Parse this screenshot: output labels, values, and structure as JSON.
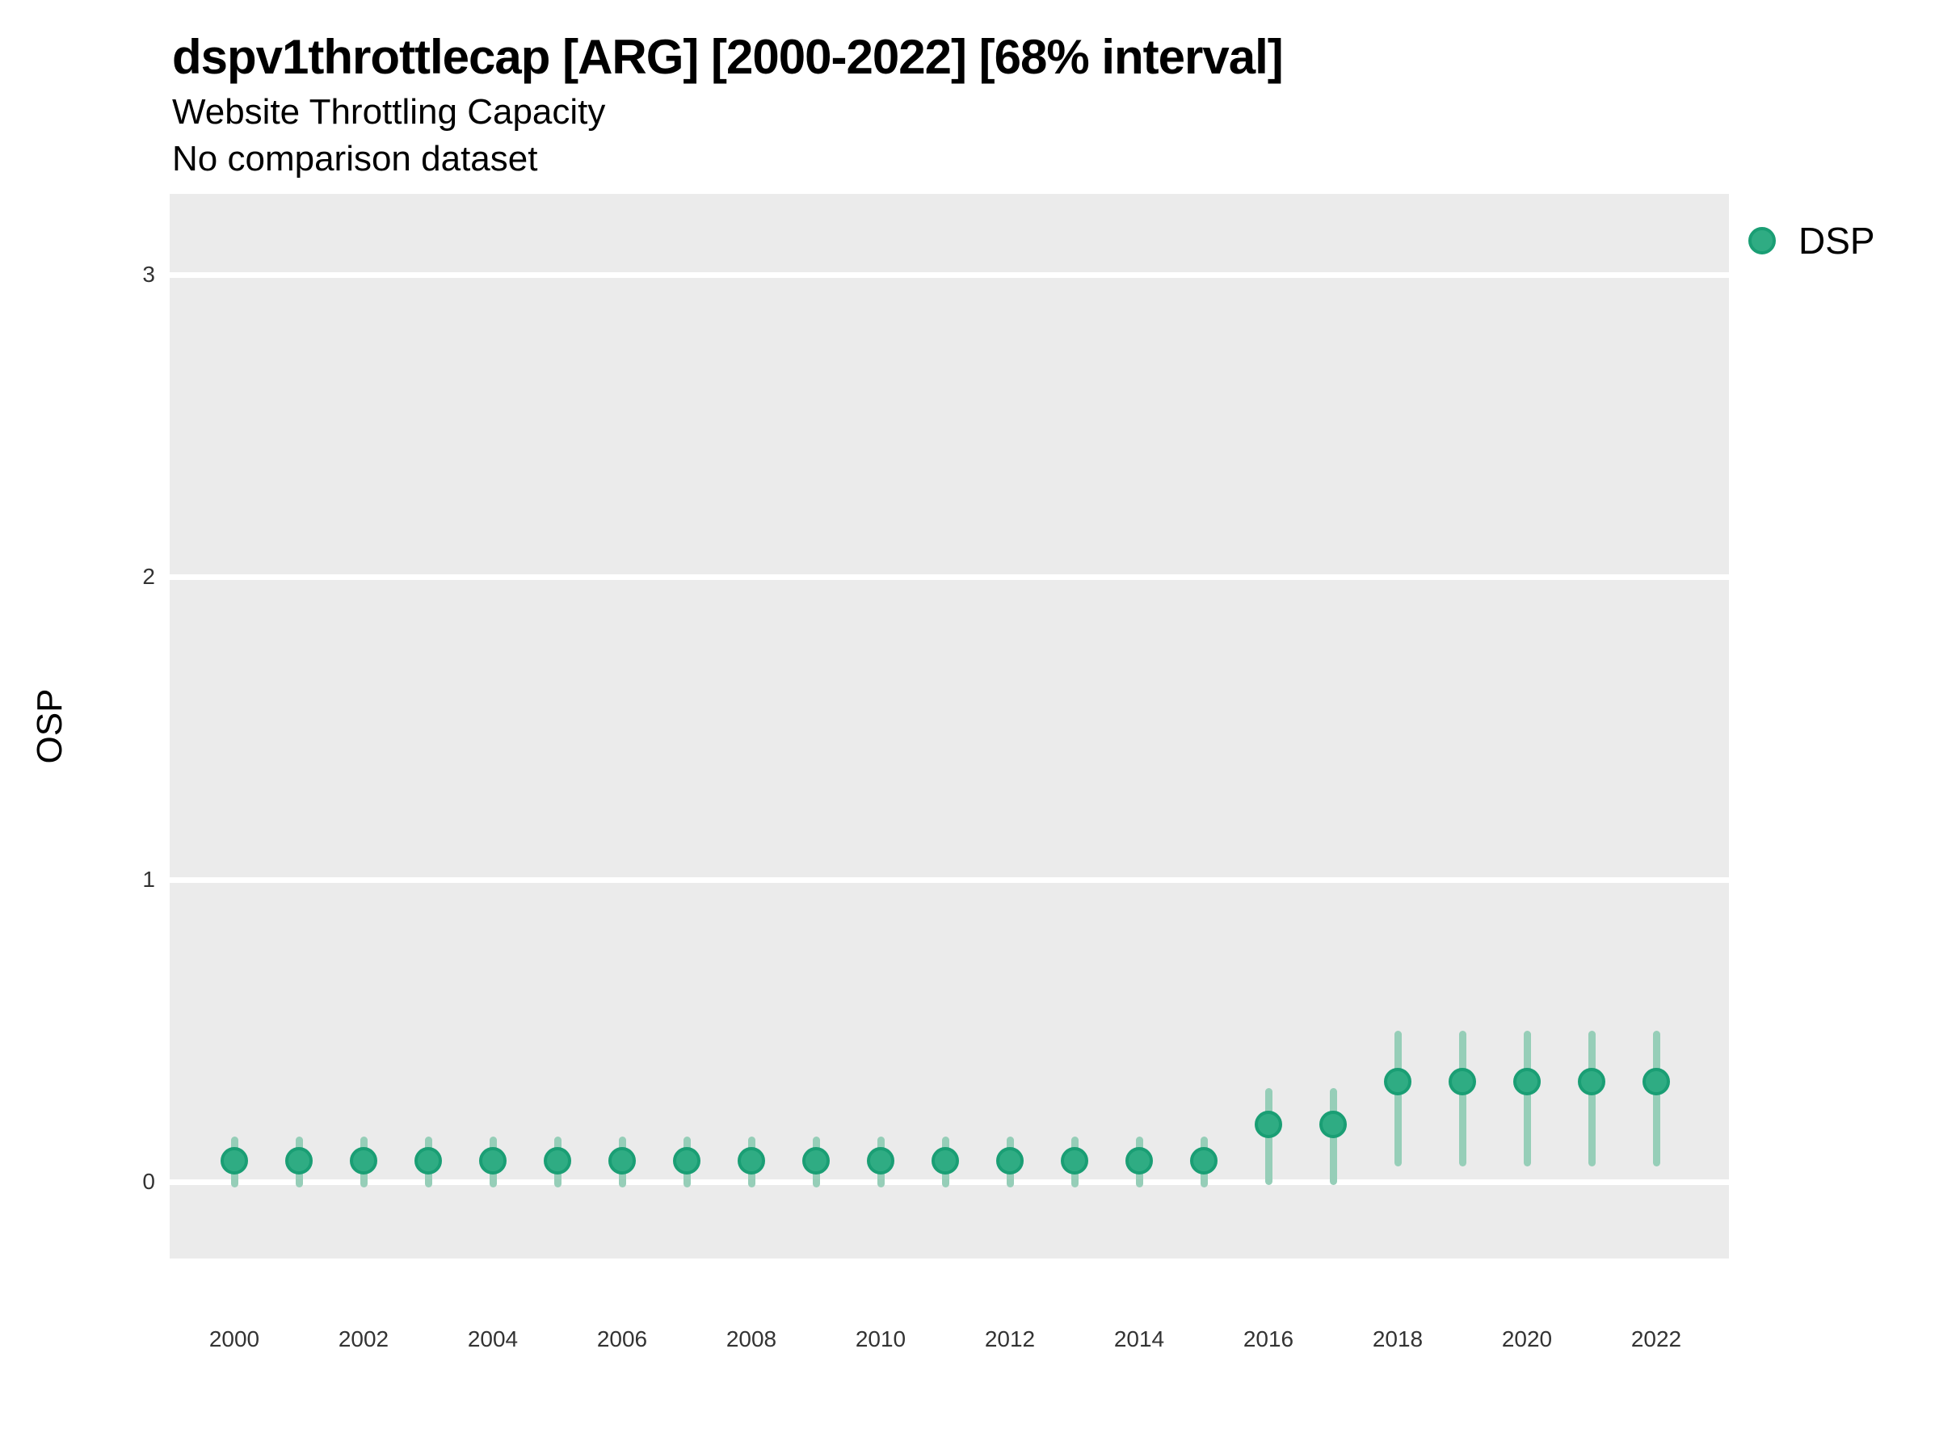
{
  "title": "dspv1throttlecap [ARG] [2000-2022] [68% interval]",
  "subtitle": "Website Throttling Capacity",
  "note": "No comparison dataset",
  "chart_data": {
    "type": "pointrange",
    "title": "dspv1throttlecap [ARG] [2000-2022] [68% interval]",
    "subtitle": "Website Throttling Capacity",
    "annotation": "No comparison dataset",
    "xlabel": "",
    "ylabel": "OSP",
    "interval_level": "68%",
    "grid": "horizontal-major-only",
    "panel_bg": "#EBEBEB",
    "grid_color": "#FFFFFF",
    "xlim": [
      1998.9,
      2023.1
    ],
    "ylim": [
      -0.25,
      3.27
    ],
    "x_ticks": [
      2000,
      2002,
      2004,
      2006,
      2008,
      2010,
      2012,
      2014,
      2016,
      2018,
      2020,
      2022
    ],
    "y_ticks": [
      0,
      1,
      2,
      3
    ],
    "legend": {
      "position": "right",
      "entries": [
        {
          "label": "DSP",
          "marker": "circle",
          "color": "#2FAC83",
          "border_color": "#1A9E74"
        }
      ]
    },
    "series": [
      {
        "name": "DSP",
        "point_color": "#2FAC83",
        "point_border_color": "#1A9E74",
        "interval_color": "#96CEB8",
        "points": [
          {
            "x": 2000,
            "y": 0.07,
            "low": -0.02,
            "high": 0.15
          },
          {
            "x": 2001,
            "y": 0.07,
            "low": -0.02,
            "high": 0.15
          },
          {
            "x": 2002,
            "y": 0.07,
            "low": -0.02,
            "high": 0.15
          },
          {
            "x": 2003,
            "y": 0.07,
            "low": -0.02,
            "high": 0.15
          },
          {
            "x": 2004,
            "y": 0.07,
            "low": -0.02,
            "high": 0.15
          },
          {
            "x": 2005,
            "y": 0.07,
            "low": -0.02,
            "high": 0.15
          },
          {
            "x": 2006,
            "y": 0.07,
            "low": -0.02,
            "high": 0.15
          },
          {
            "x": 2007,
            "y": 0.07,
            "low": -0.02,
            "high": 0.15
          },
          {
            "x": 2008,
            "y": 0.07,
            "low": -0.02,
            "high": 0.15
          },
          {
            "x": 2009,
            "y": 0.07,
            "low": -0.02,
            "high": 0.15
          },
          {
            "x": 2010,
            "y": 0.07,
            "low": -0.02,
            "high": 0.15
          },
          {
            "x": 2011,
            "y": 0.07,
            "low": -0.02,
            "high": 0.15
          },
          {
            "x": 2012,
            "y": 0.07,
            "low": -0.02,
            "high": 0.15
          },
          {
            "x": 2013,
            "y": 0.07,
            "low": -0.02,
            "high": 0.15
          },
          {
            "x": 2014,
            "y": 0.07,
            "low": -0.02,
            "high": 0.15
          },
          {
            "x": 2015,
            "y": 0.07,
            "low": -0.02,
            "high": 0.15
          },
          {
            "x": 2016,
            "y": 0.19,
            "low": -0.01,
            "high": 0.31
          },
          {
            "x": 2017,
            "y": 0.19,
            "low": -0.01,
            "high": 0.31
          },
          {
            "x": 2018,
            "y": 0.33,
            "low": 0.05,
            "high": 0.5
          },
          {
            "x": 2019,
            "y": 0.33,
            "low": 0.05,
            "high": 0.5
          },
          {
            "x": 2020,
            "y": 0.33,
            "low": 0.05,
            "high": 0.5
          },
          {
            "x": 2021,
            "y": 0.33,
            "low": 0.05,
            "high": 0.5
          },
          {
            "x": 2022,
            "y": 0.33,
            "low": 0.05,
            "high": 0.5
          }
        ]
      }
    ]
  }
}
